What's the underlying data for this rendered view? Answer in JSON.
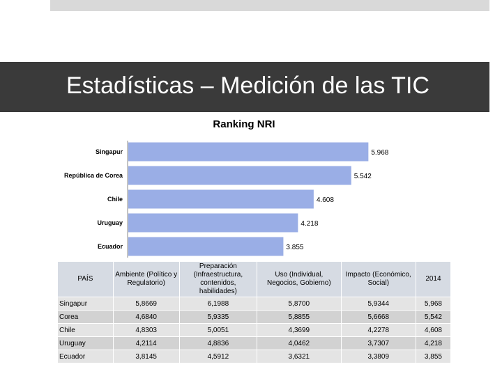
{
  "slide": {
    "title": "Estadísticas – Medición de las TIC"
  },
  "chart_data": {
    "type": "bar",
    "orientation": "horizontal",
    "title": "Ranking NRI",
    "categories": [
      "Singapur",
      "República de Corea",
      "Chile",
      "Uruguay",
      "Ecuador"
    ],
    "values": [
      5.968,
      5.542,
      4.608,
      4.218,
      3.855
    ],
    "value_labels": [
      "5.968",
      "5.542",
      "4.608",
      "4.218",
      "3.855"
    ],
    "xlim": [
      0,
      6.5
    ],
    "bar_color": "#9aaee6",
    "grid": false,
    "legend": "none"
  },
  "table": {
    "headers": [
      "PAÍS",
      "Ambiente (Político y Regulatorio)",
      "Preparación (Infraestructura, contenidos, habilidades)",
      "Uso (Individual, Negocios, Gobierno)",
      "Impacto (Económico, Social)",
      "2014"
    ],
    "rows": [
      [
        "Singapur",
        "5,8669",
        "6,1988",
        "5,8700",
        "5,9344",
        "5,968"
      ],
      [
        "Corea",
        "4,6840",
        "5,9335",
        "5,8855",
        "5,6668",
        "5,542"
      ],
      [
        "Chile",
        "4,8303",
        "5,0051",
        "4,3699",
        "4,2278",
        "4,608"
      ],
      [
        "Uruguay",
        "4,2114",
        "4,8836",
        "4,0462",
        "3,7307",
        "4,218"
      ],
      [
        "Ecuador",
        "3,8145",
        "4,5912",
        "3,6321",
        "3,3809",
        "3,855"
      ]
    ]
  }
}
